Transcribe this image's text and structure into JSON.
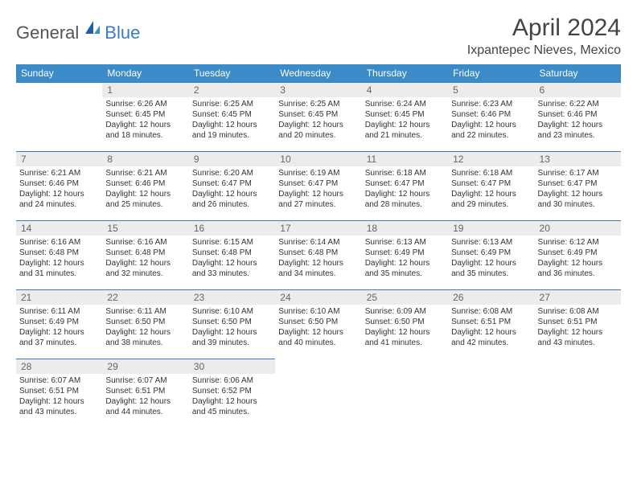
{
  "logo": {
    "text1": "General",
    "text2": "Blue"
  },
  "title": "April 2024",
  "location": "Ixpantepec Nieves, Mexico",
  "colors": {
    "header_bg": "#3b8bc8",
    "header_text": "#ffffff",
    "rule": "#3b7bbf",
    "daynum_bg": "#ececec",
    "daynum_text": "#656565",
    "body_text": "#333333",
    "logo_gray": "#555555",
    "logo_blue": "#3b7bbf"
  },
  "weekdays": [
    "Sunday",
    "Monday",
    "Tuesday",
    "Wednesday",
    "Thursday",
    "Friday",
    "Saturday"
  ],
  "weeks": [
    [
      null,
      {
        "n": "1",
        "sr": "6:26 AM",
        "ss": "6:45 PM",
        "dl": "12 hours and 18 minutes."
      },
      {
        "n": "2",
        "sr": "6:25 AM",
        "ss": "6:45 PM",
        "dl": "12 hours and 19 minutes."
      },
      {
        "n": "3",
        "sr": "6:25 AM",
        "ss": "6:45 PM",
        "dl": "12 hours and 20 minutes."
      },
      {
        "n": "4",
        "sr": "6:24 AM",
        "ss": "6:45 PM",
        "dl": "12 hours and 21 minutes."
      },
      {
        "n": "5",
        "sr": "6:23 AM",
        "ss": "6:46 PM",
        "dl": "12 hours and 22 minutes."
      },
      {
        "n": "6",
        "sr": "6:22 AM",
        "ss": "6:46 PM",
        "dl": "12 hours and 23 minutes."
      }
    ],
    [
      {
        "n": "7",
        "sr": "6:21 AM",
        "ss": "6:46 PM",
        "dl": "12 hours and 24 minutes."
      },
      {
        "n": "8",
        "sr": "6:21 AM",
        "ss": "6:46 PM",
        "dl": "12 hours and 25 minutes."
      },
      {
        "n": "9",
        "sr": "6:20 AM",
        "ss": "6:47 PM",
        "dl": "12 hours and 26 minutes."
      },
      {
        "n": "10",
        "sr": "6:19 AM",
        "ss": "6:47 PM",
        "dl": "12 hours and 27 minutes."
      },
      {
        "n": "11",
        "sr": "6:18 AM",
        "ss": "6:47 PM",
        "dl": "12 hours and 28 minutes."
      },
      {
        "n": "12",
        "sr": "6:18 AM",
        "ss": "6:47 PM",
        "dl": "12 hours and 29 minutes."
      },
      {
        "n": "13",
        "sr": "6:17 AM",
        "ss": "6:47 PM",
        "dl": "12 hours and 30 minutes."
      }
    ],
    [
      {
        "n": "14",
        "sr": "6:16 AM",
        "ss": "6:48 PM",
        "dl": "12 hours and 31 minutes."
      },
      {
        "n": "15",
        "sr": "6:16 AM",
        "ss": "6:48 PM",
        "dl": "12 hours and 32 minutes."
      },
      {
        "n": "16",
        "sr": "6:15 AM",
        "ss": "6:48 PM",
        "dl": "12 hours and 33 minutes."
      },
      {
        "n": "17",
        "sr": "6:14 AM",
        "ss": "6:48 PM",
        "dl": "12 hours and 34 minutes."
      },
      {
        "n": "18",
        "sr": "6:13 AM",
        "ss": "6:49 PM",
        "dl": "12 hours and 35 minutes."
      },
      {
        "n": "19",
        "sr": "6:13 AM",
        "ss": "6:49 PM",
        "dl": "12 hours and 35 minutes."
      },
      {
        "n": "20",
        "sr": "6:12 AM",
        "ss": "6:49 PM",
        "dl": "12 hours and 36 minutes."
      }
    ],
    [
      {
        "n": "21",
        "sr": "6:11 AM",
        "ss": "6:49 PM",
        "dl": "12 hours and 37 minutes."
      },
      {
        "n": "22",
        "sr": "6:11 AM",
        "ss": "6:50 PM",
        "dl": "12 hours and 38 minutes."
      },
      {
        "n": "23",
        "sr": "6:10 AM",
        "ss": "6:50 PM",
        "dl": "12 hours and 39 minutes."
      },
      {
        "n": "24",
        "sr": "6:10 AM",
        "ss": "6:50 PM",
        "dl": "12 hours and 40 minutes."
      },
      {
        "n": "25",
        "sr": "6:09 AM",
        "ss": "6:50 PM",
        "dl": "12 hours and 41 minutes."
      },
      {
        "n": "26",
        "sr": "6:08 AM",
        "ss": "6:51 PM",
        "dl": "12 hours and 42 minutes."
      },
      {
        "n": "27",
        "sr": "6:08 AM",
        "ss": "6:51 PM",
        "dl": "12 hours and 43 minutes."
      }
    ],
    [
      {
        "n": "28",
        "sr": "6:07 AM",
        "ss": "6:51 PM",
        "dl": "12 hours and 43 minutes."
      },
      {
        "n": "29",
        "sr": "6:07 AM",
        "ss": "6:51 PM",
        "dl": "12 hours and 44 minutes."
      },
      {
        "n": "30",
        "sr": "6:06 AM",
        "ss": "6:52 PM",
        "dl": "12 hours and 45 minutes."
      },
      null,
      null,
      null,
      null
    ]
  ],
  "labels": {
    "sunrise": "Sunrise:",
    "sunset": "Sunset:",
    "daylight": "Daylight:"
  }
}
